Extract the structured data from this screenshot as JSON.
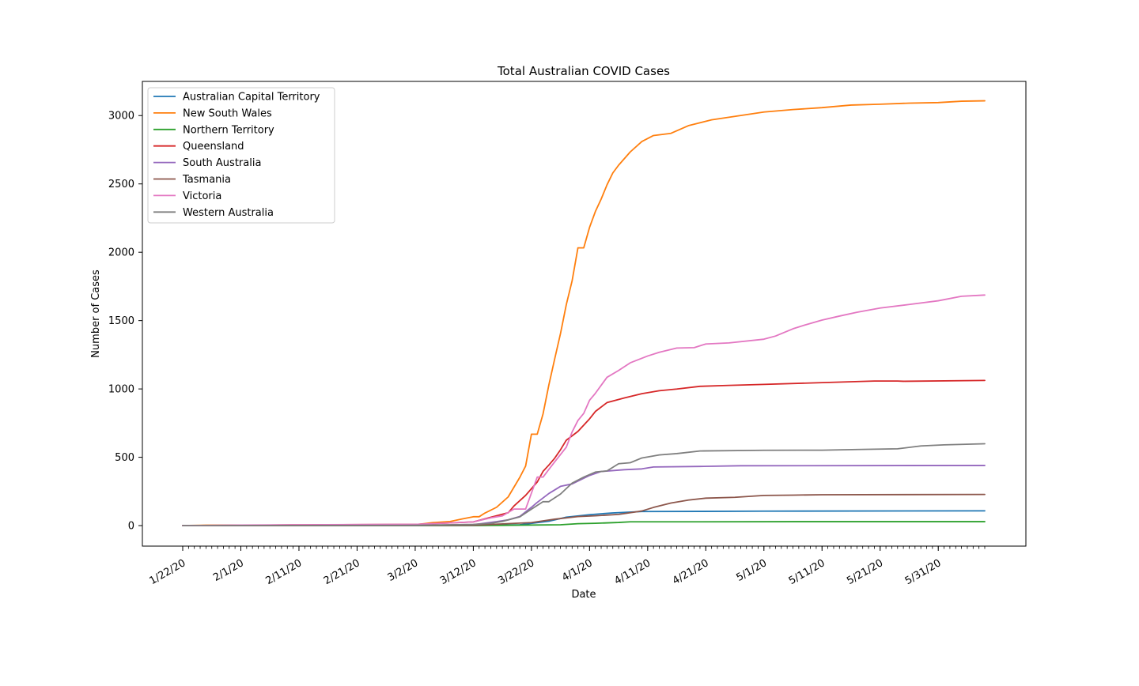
{
  "chart_data": {
    "type": "line",
    "title": "Total Australian COVID Cases",
    "xlabel": "Date",
    "ylabel": "Number of Cases",
    "x_start": "2020-01-22",
    "x_end": "2020-06-08",
    "x_tick_labels": [
      "1/22/20",
      "2/1/20",
      "2/11/20",
      "2/21/20",
      "3/2/20",
      "3/12/20",
      "3/22/20",
      "4/1/20",
      "4/11/20",
      "4/21/20",
      "5/1/20",
      "5/11/20",
      "5/21/20",
      "5/31/20"
    ],
    "x_tick_dates": [
      "2020-01-22",
      "2020-02-01",
      "2020-02-11",
      "2020-02-21",
      "2020-03-02",
      "2020-03-12",
      "2020-03-22",
      "2020-04-01",
      "2020-04-11",
      "2020-04-21",
      "2020-05-01",
      "2020-05-11",
      "2020-05-21",
      "2020-05-31"
    ],
    "y_ticks": [
      0,
      500,
      1000,
      1500,
      2000,
      2500,
      3000
    ],
    "ylim": [
      -150,
      3250
    ],
    "grid": false,
    "legend_position": "upper-left",
    "series": [
      {
        "name": "Australian Capital Territory",
        "color": "#1f77b4",
        "points": [
          [
            "2020-01-22",
            0
          ],
          [
            "2020-03-12",
            1
          ],
          [
            "2020-03-20",
            6
          ],
          [
            "2020-03-25",
            32
          ],
          [
            "2020-03-28",
            62
          ],
          [
            "2020-04-01",
            80
          ],
          [
            "2020-04-05",
            93
          ],
          [
            "2020-04-10",
            103
          ],
          [
            "2020-04-20",
            104
          ],
          [
            "2020-05-01",
            106
          ],
          [
            "2020-06-08",
            108
          ]
        ]
      },
      {
        "name": "New South Wales",
        "color": "#ff7f0e",
        "points": [
          [
            "2020-01-22",
            0
          ],
          [
            "2020-01-26",
            3
          ],
          [
            "2020-02-01",
            4
          ],
          [
            "2020-02-14",
            4
          ],
          [
            "2020-03-02",
            6
          ],
          [
            "2020-03-05",
            22
          ],
          [
            "2020-03-08",
            30
          ],
          [
            "2020-03-10",
            48
          ],
          [
            "2020-03-12",
            65
          ],
          [
            "2020-03-13",
            65
          ],
          [
            "2020-03-14",
            92
          ],
          [
            "2020-03-16",
            134
          ],
          [
            "2020-03-18",
            210
          ],
          [
            "2020-03-20",
            353
          ],
          [
            "2020-03-21",
            436
          ],
          [
            "2020-03-22",
            669
          ],
          [
            "2020-03-23",
            669
          ],
          [
            "2020-03-24",
            818
          ],
          [
            "2020-03-25",
            1029
          ],
          [
            "2020-03-26",
            1219
          ],
          [
            "2020-03-27",
            1405
          ],
          [
            "2020-03-28",
            1617
          ],
          [
            "2020-03-29",
            1791
          ],
          [
            "2020-03-30",
            2032
          ],
          [
            "2020-03-31",
            2032
          ],
          [
            "2020-04-01",
            2182
          ],
          [
            "2020-04-02",
            2298
          ],
          [
            "2020-04-03",
            2389
          ],
          [
            "2020-04-04",
            2493
          ],
          [
            "2020-04-05",
            2580
          ],
          [
            "2020-04-06",
            2637
          ],
          [
            "2020-04-08",
            2734
          ],
          [
            "2020-04-10",
            2810
          ],
          [
            "2020-04-12",
            2854
          ],
          [
            "2020-04-15",
            2870
          ],
          [
            "2020-04-18",
            2926
          ],
          [
            "2020-04-22",
            2969
          ],
          [
            "2020-04-26",
            2994
          ],
          [
            "2020-05-01",
            3026
          ],
          [
            "2020-05-06",
            3044
          ],
          [
            "2020-05-11",
            3058
          ],
          [
            "2020-05-16",
            3077
          ],
          [
            "2020-05-21",
            3083
          ],
          [
            "2020-05-26",
            3091
          ],
          [
            "2020-05-31",
            3095
          ],
          [
            "2020-06-04",
            3105
          ],
          [
            "2020-06-08",
            3108
          ]
        ]
      },
      {
        "name": "Northern Territory",
        "color": "#2ca02c",
        "points": [
          [
            "2020-01-22",
            0
          ],
          [
            "2020-03-14",
            1
          ],
          [
            "2020-03-27",
            6
          ],
          [
            "2020-03-30",
            14
          ],
          [
            "2020-04-02",
            17
          ],
          [
            "2020-04-06",
            23
          ],
          [
            "2020-04-08",
            28
          ],
          [
            "2020-04-20",
            28
          ],
          [
            "2020-05-07",
            29
          ],
          [
            "2020-05-08",
            29
          ],
          [
            "2020-06-08",
            29
          ]
        ]
      },
      {
        "name": "Queensland",
        "color": "#d62728",
        "points": [
          [
            "2020-01-22",
            0
          ],
          [
            "2020-01-29",
            1
          ],
          [
            "2020-02-10",
            5
          ],
          [
            "2020-03-02",
            9
          ],
          [
            "2020-03-12",
            27
          ],
          [
            "2020-03-15",
            61
          ],
          [
            "2020-03-18",
            94
          ],
          [
            "2020-03-19",
            144
          ],
          [
            "2020-03-21",
            221
          ],
          [
            "2020-03-23",
            319
          ],
          [
            "2020-03-24",
            397
          ],
          [
            "2020-03-25",
            443
          ],
          [
            "2020-03-26",
            493
          ],
          [
            "2020-03-27",
            555
          ],
          [
            "2020-03-28",
            625
          ],
          [
            "2020-03-30",
            689
          ],
          [
            "2020-04-01",
            781
          ],
          [
            "2020-04-02",
            835
          ],
          [
            "2020-04-04",
            900
          ],
          [
            "2020-04-07",
            934
          ],
          [
            "2020-04-10",
            965
          ],
          [
            "2020-04-13",
            987
          ],
          [
            "2020-04-16",
            999
          ],
          [
            "2020-04-20",
            1019
          ],
          [
            "2020-04-25",
            1026
          ],
          [
            "2020-05-01",
            1033
          ],
          [
            "2020-05-10",
            1045
          ],
          [
            "2020-05-20",
            1058
          ],
          [
            "2020-05-24",
            1058
          ],
          [
            "2020-05-25",
            1056
          ],
          [
            "2020-06-08",
            1062
          ]
        ]
      },
      {
        "name": "South Australia",
        "color": "#9467bd",
        "points": [
          [
            "2020-01-22",
            0
          ],
          [
            "2020-02-02",
            2
          ],
          [
            "2020-03-02",
            2
          ],
          [
            "2020-03-12",
            7
          ],
          [
            "2020-03-16",
            29
          ],
          [
            "2020-03-18",
            42
          ],
          [
            "2020-03-20",
            67
          ],
          [
            "2020-03-22",
            134
          ],
          [
            "2020-03-23",
            170
          ],
          [
            "2020-03-25",
            235
          ],
          [
            "2020-03-27",
            287
          ],
          [
            "2020-03-29",
            305
          ],
          [
            "2020-04-01",
            367
          ],
          [
            "2020-04-03",
            396
          ],
          [
            "2020-04-07",
            409
          ],
          [
            "2020-04-10",
            415
          ],
          [
            "2020-04-12",
            429
          ],
          [
            "2020-04-20",
            433
          ],
          [
            "2020-04-27",
            438
          ],
          [
            "2020-06-08",
            440
          ]
        ]
      },
      {
        "name": "Tasmania",
        "color": "#8c564b",
        "points": [
          [
            "2020-01-22",
            0
          ],
          [
            "2020-03-02",
            1
          ],
          [
            "2020-03-12",
            3
          ],
          [
            "2020-03-22",
            22
          ],
          [
            "2020-03-26",
            47
          ],
          [
            "2020-03-30",
            66
          ],
          [
            "2020-04-02",
            72
          ],
          [
            "2020-04-06",
            82
          ],
          [
            "2020-04-10",
            107
          ],
          [
            "2020-04-12",
            133
          ],
          [
            "2020-04-15",
            165
          ],
          [
            "2020-04-18",
            187
          ],
          [
            "2020-04-21",
            201
          ],
          [
            "2020-04-26",
            207
          ],
          [
            "2020-05-01",
            221
          ],
          [
            "2020-05-06",
            223
          ],
          [
            "2020-05-11",
            226
          ],
          [
            "2020-06-08",
            228
          ]
        ]
      },
      {
        "name": "Victoria",
        "color": "#e377c2",
        "points": [
          [
            "2020-01-22",
            0
          ],
          [
            "2020-01-26",
            1
          ],
          [
            "2020-02-01",
            4
          ],
          [
            "2020-03-02",
            9
          ],
          [
            "2020-03-12",
            27
          ],
          [
            "2020-03-15",
            57
          ],
          [
            "2020-03-17",
            71
          ],
          [
            "2020-03-19",
            121
          ],
          [
            "2020-03-21",
            121
          ],
          [
            "2020-03-23",
            355
          ],
          [
            "2020-03-24",
            355
          ],
          [
            "2020-03-25",
            411
          ],
          [
            "2020-03-26",
            466
          ],
          [
            "2020-03-28",
            574
          ],
          [
            "2020-03-29",
            685
          ],
          [
            "2020-03-30",
            769
          ],
          [
            "2020-03-31",
            821
          ],
          [
            "2020-04-01",
            917
          ],
          [
            "2020-04-02",
            968
          ],
          [
            "2020-04-04",
            1085
          ],
          [
            "2020-04-06",
            1135
          ],
          [
            "2020-04-08",
            1191
          ],
          [
            "2020-04-11",
            1241
          ],
          [
            "2020-04-13",
            1268
          ],
          [
            "2020-04-16",
            1299
          ],
          [
            "2020-04-19",
            1302
          ],
          [
            "2020-04-21",
            1329
          ],
          [
            "2020-04-25",
            1337
          ],
          [
            "2020-05-01",
            1364
          ],
          [
            "2020-05-03",
            1387
          ],
          [
            "2020-05-06",
            1440
          ],
          [
            "2020-05-08",
            1467
          ],
          [
            "2020-05-11",
            1504
          ],
          [
            "2020-05-14",
            1533
          ],
          [
            "2020-05-17",
            1561
          ],
          [
            "2020-05-21",
            1592
          ],
          [
            "2020-05-26",
            1618
          ],
          [
            "2020-05-31",
            1645
          ],
          [
            "2020-06-04",
            1678
          ],
          [
            "2020-06-08",
            1687
          ]
        ]
      },
      {
        "name": "Western Australia",
        "color": "#7f7f7f",
        "points": [
          [
            "2020-01-22",
            0
          ],
          [
            "2020-03-02",
            2
          ],
          [
            "2020-03-12",
            9
          ],
          [
            "2020-03-15",
            17
          ],
          [
            "2020-03-17",
            31
          ],
          [
            "2020-03-20",
            64
          ],
          [
            "2020-03-22",
            120
          ],
          [
            "2020-03-24",
            175
          ],
          [
            "2020-03-25",
            175
          ],
          [
            "2020-03-27",
            231
          ],
          [
            "2020-03-29",
            311
          ],
          [
            "2020-03-31",
            355
          ],
          [
            "2020-04-02",
            392
          ],
          [
            "2020-04-04",
            400
          ],
          [
            "2020-04-06",
            453
          ],
          [
            "2020-04-08",
            460
          ],
          [
            "2020-04-10",
            495
          ],
          [
            "2020-04-13",
            517
          ],
          [
            "2020-04-16",
            527
          ],
          [
            "2020-04-20",
            546
          ],
          [
            "2020-05-01",
            551
          ],
          [
            "2020-05-11",
            552
          ],
          [
            "2020-05-17",
            557
          ],
          [
            "2020-05-24",
            562
          ],
          [
            "2020-05-28",
            583
          ],
          [
            "2020-06-01",
            591
          ],
          [
            "2020-06-08",
            599
          ]
        ]
      }
    ]
  }
}
